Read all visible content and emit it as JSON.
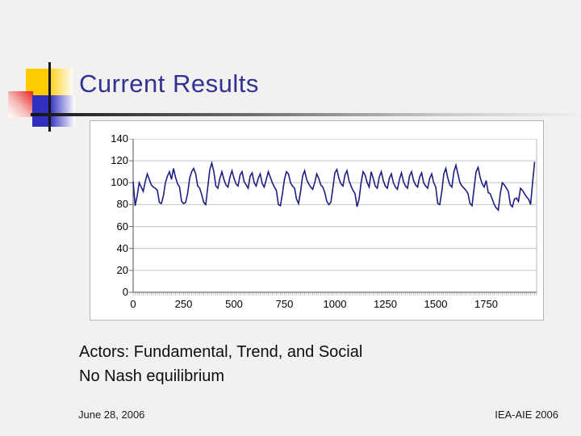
{
  "slide": {
    "title": "Current Results",
    "body_line1": "Actors: Fundamental, Trend, and Social",
    "body_line2": "No Nash equilibrium",
    "footer_left": "June 28, 2006",
    "footer_right": "IEA-AIE 2006"
  },
  "colors": {
    "title_text": "#303291",
    "series_line": "#1e1e82",
    "gridline": "#c6c6c6",
    "axis": "#6b6b6b",
    "minor_tick": "#9a9a9a",
    "plot_right_border": "#b8b8b8",
    "panel_border": "#b4b4b4",
    "slide_background": "#f2f1ef",
    "accent_yellow": "#ffcb01",
    "accent_red": "#e8302f",
    "accent_blue": "#2f2fc0"
  },
  "chart_data": {
    "type": "line",
    "title": "",
    "xlabel": "",
    "ylabel": "",
    "xlim": [
      0,
      2000
    ],
    "ylim": [
      0,
      140
    ],
    "y_ticks": [
      0,
      20,
      40,
      60,
      80,
      100,
      120,
      140
    ],
    "x_ticks": [
      0,
      250,
      500,
      750,
      1000,
      1250,
      1500,
      1750
    ],
    "x_minor_tick_step": 10,
    "grid": true,
    "legend": false,
    "x_start": 0,
    "x_step": 10,
    "series": [
      {
        "values": [
          101,
          79,
          88,
          100,
          96,
          92,
          101,
          108,
          103,
          98,
          96,
          95,
          93,
          82,
          81,
          88,
          100,
          106,
          110,
          103,
          113,
          105,
          99,
          96,
          83,
          81,
          82,
          90,
          104,
          110,
          113,
          108,
          97,
          95,
          89,
          82,
          80,
          96,
          112,
          118,
          110,
          97,
          95,
          104,
          110,
          103,
          98,
          96,
          105,
          111,
          104,
          99,
          97,
          107,
          110,
          101,
          98,
          95,
          106,
          109,
          100,
          97,
          104,
          108,
          99,
          96,
          103,
          110,
          105,
          100,
          96,
          93,
          80,
          79,
          90,
          103,
          110,
          108,
          100,
          97,
          95,
          85,
          81,
          92,
          106,
          111,
          103,
          99,
          96,
          94,
          100,
          108,
          104,
          98,
          96,
          91,
          83,
          80,
          82,
          95,
          109,
          112,
          104,
          99,
          97,
          107,
          111,
          102,
          97,
          93,
          90,
          78,
          85,
          100,
          110,
          107,
          100,
          96,
          110,
          104,
          97,
          95,
          105,
          110,
          102,
          97,
          95,
          104,
          108,
          100,
          96,
          94,
          103,
          109,
          101,
          97,
          95,
          106,
          110,
          102,
          98,
          96,
          105,
          109,
          100,
          97,
          95,
          104,
          108,
          100,
          96,
          81,
          80,
          92,
          108,
          113,
          104,
          98,
          96,
          110,
          116,
          108,
          100,
          97,
          95,
          93,
          90,
          81,
          79,
          95,
          110,
          114,
          105,
          99,
          96,
          102,
          91,
          90,
          85,
          80,
          77,
          75,
          90,
          100,
          98,
          95,
          92,
          80,
          78,
          85,
          86,
          83,
          95,
          93,
          90,
          87,
          85,
          80,
          100,
          119
        ]
      }
    ]
  }
}
